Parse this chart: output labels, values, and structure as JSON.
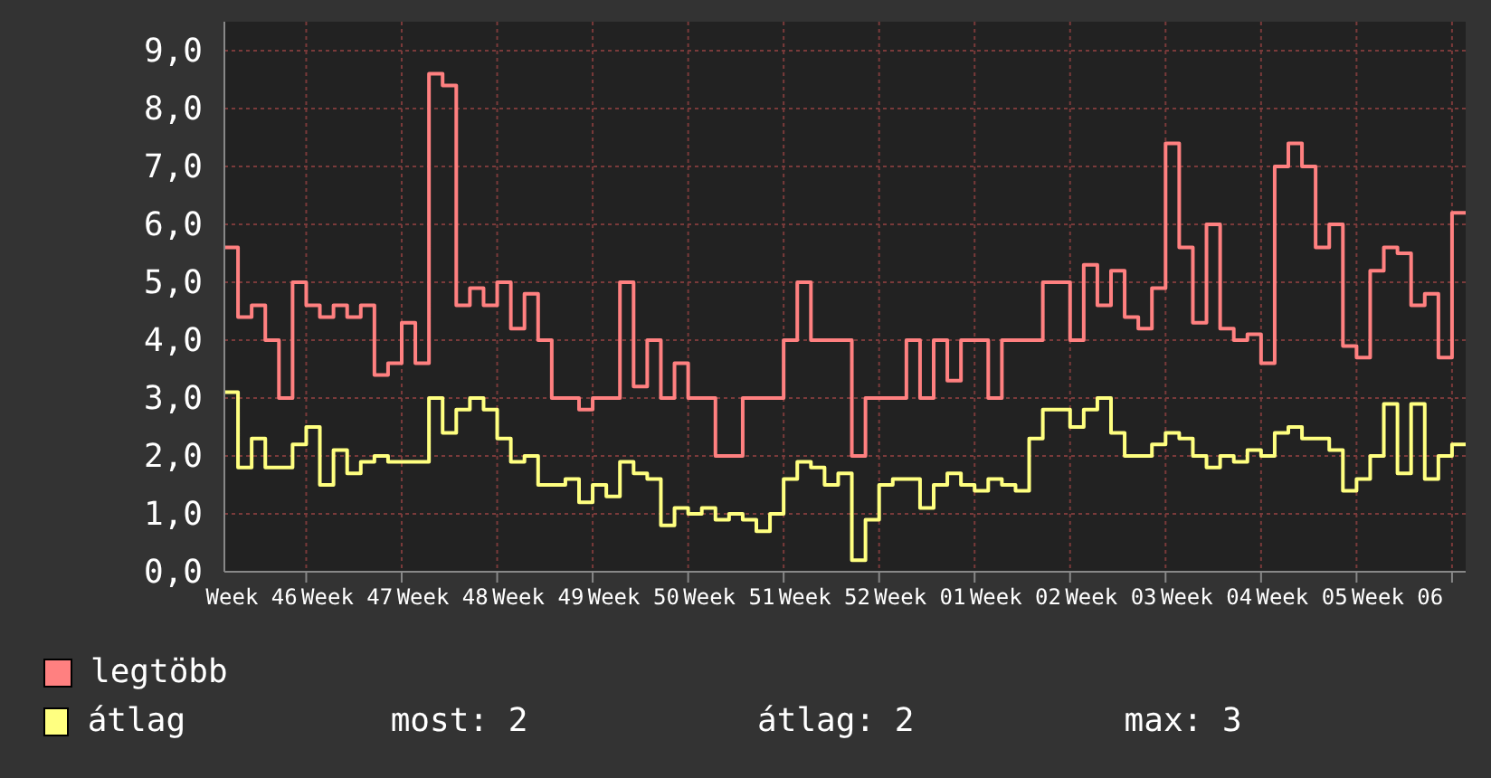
{
  "chart_data": {
    "type": "step",
    "categories": [
      null,
      null,
      "Week 46",
      null,
      null,
      null,
      null,
      null,
      null,
      "Week 47",
      null,
      null,
      null,
      null,
      null,
      null,
      "Week 48",
      null,
      null,
      null,
      null,
      null,
      null,
      "Week 49",
      null,
      null,
      null,
      null,
      null,
      null,
      "Week 50",
      null,
      null,
      null,
      null,
      null,
      null,
      "Week 51",
      null,
      null,
      null,
      null,
      null,
      null,
      "Week 52",
      null,
      null,
      null,
      null,
      null,
      null,
      "Week 01",
      null,
      null,
      null,
      null,
      null,
      null,
      "Week 02",
      null,
      null,
      null,
      null,
      null,
      null,
      "Week 03",
      null,
      null,
      null,
      null,
      null,
      null,
      "Week 04",
      null,
      null,
      null,
      null,
      null,
      null,
      "Week 05",
      null,
      null,
      null,
      null,
      null,
      null,
      "Week 06",
      null,
      null,
      null,
      null,
      null
    ],
    "series": [
      {
        "name": "legtöbb",
        "color": "#ff8080",
        "values": [
          5.6,
          4.4,
          4.6,
          4.0,
          3.0,
          5.0,
          4.6,
          4.4,
          4.6,
          4.4,
          4.6,
          3.4,
          3.6,
          4.3,
          3.6,
          8.6,
          8.4,
          4.6,
          4.9,
          4.6,
          5.0,
          4.2,
          4.8,
          4.0,
          3.0,
          3.0,
          2.8,
          3.0,
          3.0,
          5.0,
          3.2,
          4.0,
          3.0,
          3.6,
          3.0,
          3.0,
          2.0,
          2.0,
          3.0,
          3.0,
          3.0,
          4.0,
          5.0,
          4.0,
          4.0,
          4.0,
          2.0,
          3.0,
          3.0,
          3.0,
          4.0,
          3.0,
          4.0,
          3.3,
          4.0,
          4.0,
          3.0,
          4.0,
          4.0,
          4.0,
          5.0,
          5.0,
          4.0,
          5.3,
          4.6,
          5.2,
          4.4,
          4.2,
          4.9,
          7.4,
          5.6,
          4.3,
          6.0,
          4.2,
          4.0,
          4.1,
          3.6,
          7.0,
          7.4,
          7.0,
          5.6,
          6.0,
          3.9,
          3.7,
          5.2,
          5.6,
          5.5,
          4.6,
          4.8,
          3.7,
          6.2,
          6.2
        ]
      },
      {
        "name": "átlag",
        "color": "#ffff80",
        "values": [
          3.1,
          1.8,
          2.3,
          1.8,
          1.8,
          2.2,
          2.5,
          1.5,
          2.1,
          1.7,
          1.9,
          2.0,
          1.9,
          1.9,
          1.9,
          3.0,
          2.4,
          2.8,
          3.0,
          2.8,
          2.3,
          1.9,
          2.0,
          1.5,
          1.5,
          1.6,
          1.2,
          1.5,
          1.3,
          1.9,
          1.7,
          1.6,
          0.8,
          1.1,
          1.0,
          1.1,
          0.9,
          1.0,
          0.9,
          0.7,
          1.0,
          1.6,
          1.9,
          1.8,
          1.5,
          1.7,
          0.2,
          0.9,
          1.5,
          1.6,
          1.6,
          1.1,
          1.5,
          1.7,
          1.5,
          1.4,
          1.6,
          1.5,
          1.4,
          2.3,
          2.8,
          2.8,
          2.5,
          2.8,
          3.0,
          2.4,
          2.0,
          2.0,
          2.2,
          2.4,
          2.3,
          2.0,
          1.8,
          2.0,
          1.9,
          2.1,
          2.0,
          2.4,
          2.5,
          2.3,
          2.3,
          2.1,
          1.4,
          1.6,
          2.0,
          2.9,
          1.7,
          2.9,
          1.6,
          2.0,
          2.2,
          2.2
        ]
      }
    ],
    "ylim": [
      0,
      9.5
    ],
    "yticks": [
      {
        "value": 0,
        "label": "0,0"
      },
      {
        "value": 1,
        "label": "1,0"
      },
      {
        "value": 2,
        "label": "2,0"
      },
      {
        "value": 3,
        "label": "3,0"
      },
      {
        "value": 4,
        "label": "4,0"
      },
      {
        "value": 5,
        "label": "5,0"
      },
      {
        "value": 6,
        "label": "6,0"
      },
      {
        "value": 7,
        "label": "7,0"
      },
      {
        "value": 8,
        "label": "8,0"
      },
      {
        "value": 9,
        "label": "9,0"
      }
    ],
    "grid": true,
    "legend": "bottom left",
    "line_style": "solid",
    "annotations": [
      "most: 2",
      "átlag: 2",
      "max: 3"
    ]
  }
}
